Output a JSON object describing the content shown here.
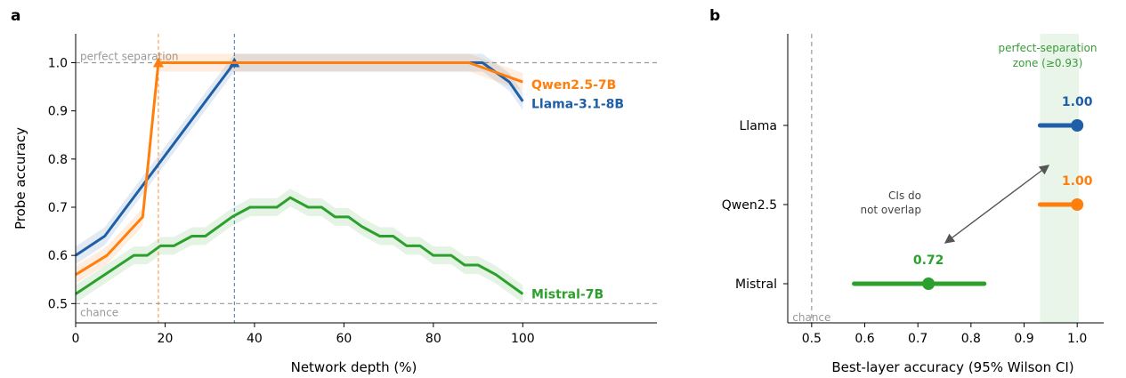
{
  "panels": {
    "a": "a",
    "b": "b"
  },
  "chart_data": [
    {
      "type": "line",
      "panel": "a",
      "xlabel": "Network depth (%)",
      "ylabel": "Probe accuracy",
      "xlim": [
        0,
        130
      ],
      "ylim": [
        0.46,
        1.06
      ],
      "xticks": [
        0,
        20,
        40,
        60,
        80,
        100
      ],
      "yticks": [
        0.5,
        0.6,
        0.7,
        0.8,
        0.9,
        1.0
      ],
      "grid": false,
      "legend": "inline-right",
      "reference_lines": [
        {
          "y": 1.0,
          "label": "perfect separation"
        },
        {
          "y": 0.5,
          "label": "chance"
        }
      ],
      "series": [
        {
          "name": "Llama-3.1-8B",
          "color": "#1f5fa8",
          "x": [
            0,
            6.5,
            35.5,
            91,
            97,
            100
          ],
          "y": [
            0.6,
            0.64,
            1.0,
            1.0,
            0.96,
            0.92
          ],
          "peak": {
            "x": 35.5,
            "y": 1.0
          }
        },
        {
          "name": "Qwen2.5-7B",
          "color": "#ff7f0e",
          "x": [
            0,
            7,
            15,
            18.5,
            88,
            100
          ],
          "y": [
            0.56,
            0.6,
            0.68,
            1.0,
            1.0,
            0.96
          ],
          "peak": {
            "x": 18.5,
            "y": 1.0
          }
        },
        {
          "name": "Mistral-7B",
          "color": "#2ca02c",
          "x": [
            0,
            13,
            16,
            19,
            22,
            26,
            29,
            32,
            35,
            39,
            45,
            48,
            52,
            55,
            58,
            61,
            64,
            68,
            71,
            74,
            77,
            80,
            84,
            87,
            90,
            94,
            100
          ],
          "y": [
            0.52,
            0.6,
            0.6,
            0.62,
            0.62,
            0.64,
            0.64,
            0.66,
            0.68,
            0.7,
            0.7,
            0.72,
            0.7,
            0.7,
            0.68,
            0.68,
            0.66,
            0.64,
            0.64,
            0.62,
            0.62,
            0.6,
            0.6,
            0.58,
            0.58,
            0.56,
            0.52
          ]
        }
      ]
    },
    {
      "type": "dot-interval",
      "panel": "b",
      "xlabel": "Best-layer accuracy (95% Wilson CI)",
      "xlim": [
        0.455,
        1.05
      ],
      "xticks": [
        0.5,
        0.6,
        0.7,
        0.8,
        0.9,
        1.0
      ],
      "tick_labels": [
        "0.5",
        "0.6",
        "0.7",
        "0.8",
        "0.9",
        "1.0"
      ],
      "chance": {
        "x": 0.5,
        "label": "chance"
      },
      "zone": {
        "from": 0.93,
        "to": 1.0,
        "label_line1": "perfect-separation",
        "label_line2": "zone (≥0.93)"
      },
      "annotation": {
        "line1": "CIs do",
        "line2": "not overlap"
      },
      "rows": [
        {
          "label": "Llama",
          "value": 1.0,
          "ci": [
            0.93,
            1.0
          ],
          "value_label": "1.00",
          "color": "#1f5fa8"
        },
        {
          "label": "Qwen2.5",
          "value": 1.0,
          "ci": [
            0.93,
            1.0
          ],
          "value_label": "1.00",
          "color": "#ff7f0e"
        },
        {
          "label": "Mistral",
          "value": 0.72,
          "ci": [
            0.58,
            0.825
          ],
          "value_label": "0.72",
          "color": "#2ca02c"
        }
      ]
    }
  ]
}
